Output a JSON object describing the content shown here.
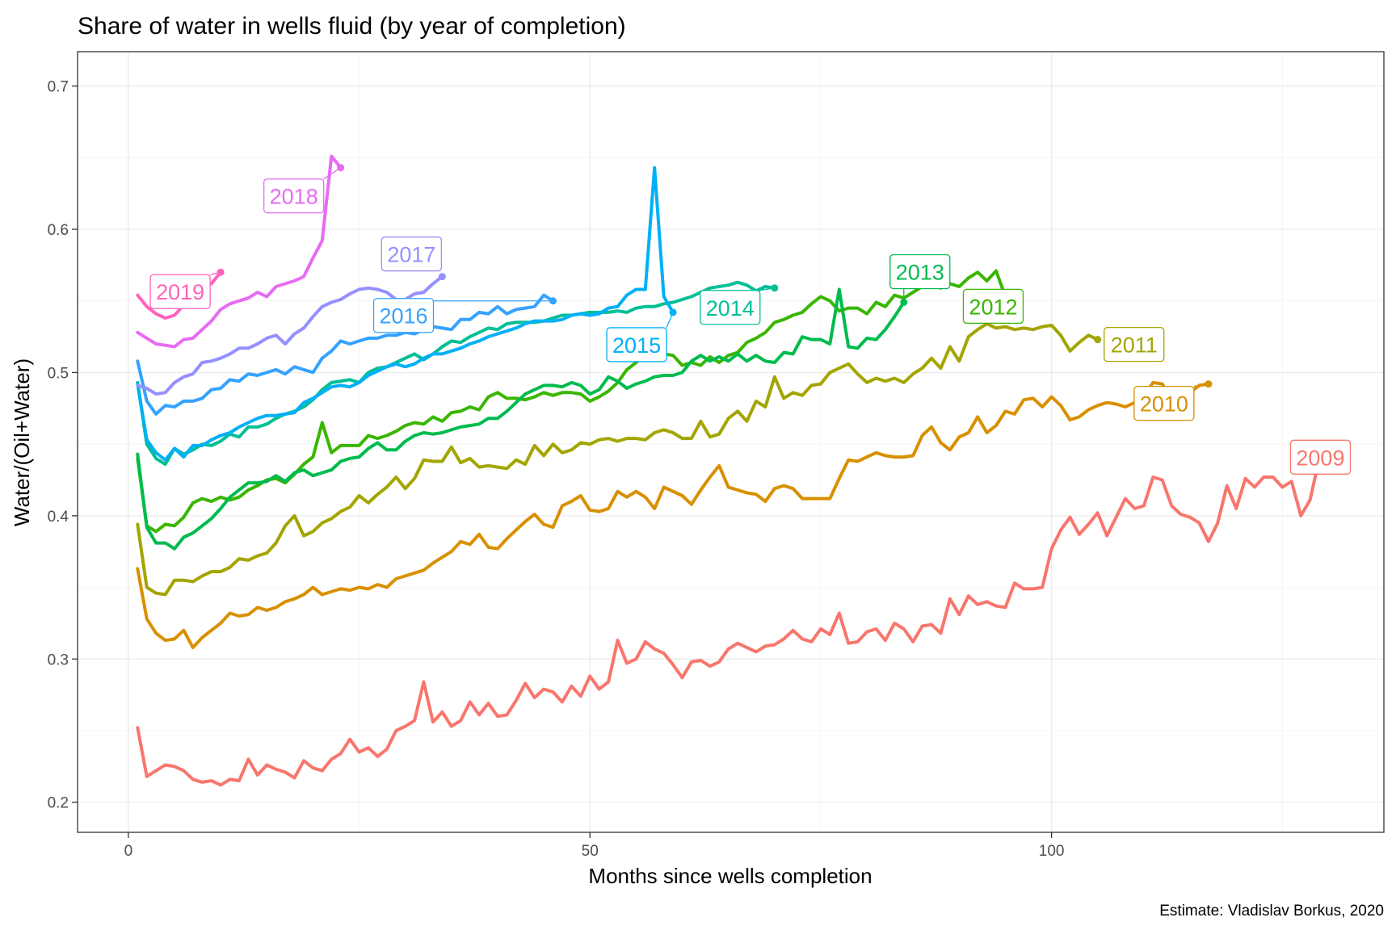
{
  "chart_data": {
    "type": "line",
    "title": "Share of water in wells fluid (by year of completion)",
    "xlabel": "Months since wells completion",
    "ylabel": "Water/(Oil+Water)",
    "caption": "Estimate: Vladislav Borkus, 2020",
    "xlim": [
      -5.5,
      136
    ],
    "ylim": [
      0.179,
      0.724
    ],
    "x_ticks": [
      0,
      50,
      100
    ],
    "y_ticks": [
      0.2,
      0.3,
      0.4,
      0.5,
      0.6,
      0.7
    ],
    "grid": true,
    "legend": "none (direct labels at series ends)",
    "series": [
      {
        "name": "2009",
        "color": "#F8766D",
        "x_start": 1,
        "values": [
          0.252,
          0.218,
          0.222,
          0.226,
          0.225,
          0.222,
          0.216,
          0.214,
          0.215,
          0.212,
          0.216,
          0.215,
          0.23,
          0.219,
          0.226,
          0.223,
          0.221,
          0.217,
          0.229,
          0.224,
          0.222,
          0.23,
          0.234,
          0.244,
          0.235,
          0.238,
          0.232,
          0.237,
          0.25,
          0.253,
          0.257,
          0.284,
          0.256,
          0.263,
          0.253,
          0.257,
          0.27,
          0.261,
          0.269,
          0.26,
          0.261,
          0.271,
          0.283,
          0.273,
          0.279,
          0.277,
          0.27,
          0.281,
          0.274,
          0.288,
          0.279,
          0.284,
          0.313,
          0.297,
          0.3,
          0.312,
          0.307,
          0.304,
          0.296,
          0.287,
          0.298,
          0.299,
          0.295,
          0.298,
          0.307,
          0.311,
          0.308,
          0.305,
          0.309,
          0.31,
          0.314,
          0.32,
          0.314,
          0.312,
          0.321,
          0.317,
          0.332,
          0.311,
          0.312,
          0.319,
          0.321,
          0.313,
          0.325,
          0.321,
          0.312,
          0.323,
          0.324,
          0.318,
          0.342,
          0.331,
          0.344,
          0.338,
          0.34,
          0.337,
          0.336,
          0.353,
          0.349,
          0.349,
          0.35,
          0.377,
          0.39,
          0.399,
          0.387,
          0.394,
          0.402,
          0.386,
          0.399,
          0.412,
          0.405,
          0.407,
          0.427,
          0.425,
          0.407,
          0.401,
          0.399,
          0.395,
          0.382,
          0.395,
          0.421,
          0.405,
          0.426,
          0.42,
          0.427,
          0.427,
          0.42,
          0.424,
          0.4,
          0.411,
          0.44,
          0.433
        ]
      },
      {
        "name": "2010",
        "color": "#D89000",
        "x_start": 1,
        "values": [
          0.363,
          0.328,
          0.318,
          0.313,
          0.314,
          0.32,
          0.308,
          0.315,
          0.32,
          0.325,
          0.332,
          0.33,
          0.331,
          0.336,
          0.334,
          0.336,
          0.34,
          0.342,
          0.345,
          0.35,
          0.345,
          0.347,
          0.349,
          0.348,
          0.35,
          0.349,
          0.352,
          0.35,
          0.356,
          0.358,
          0.36,
          0.362,
          0.367,
          0.371,
          0.375,
          0.382,
          0.38,
          0.387,
          0.378,
          0.377,
          0.384,
          0.39,
          0.396,
          0.401,
          0.394,
          0.392,
          0.407,
          0.41,
          0.414,
          0.404,
          0.403,
          0.405,
          0.417,
          0.413,
          0.417,
          0.413,
          0.405,
          0.42,
          0.417,
          0.414,
          0.408,
          0.418,
          0.427,
          0.435,
          0.42,
          0.418,
          0.416,
          0.415,
          0.41,
          0.419,
          0.421,
          0.419,
          0.412,
          0.412,
          0.412,
          0.412,
          0.426,
          0.439,
          0.438,
          0.441,
          0.444,
          0.442,
          0.441,
          0.441,
          0.442,
          0.456,
          0.462,
          0.451,
          0.446,
          0.455,
          0.458,
          0.469,
          0.458,
          0.463,
          0.473,
          0.471,
          0.481,
          0.482,
          0.476,
          0.483,
          0.477,
          0.467,
          0.469,
          0.474,
          0.477,
          0.479,
          0.478,
          0.476,
          0.479,
          0.484,
          0.493,
          0.492,
          0.481,
          0.477,
          0.486,
          0.491,
          0.492
        ]
      },
      {
        "name": "2011",
        "color": "#A3A500",
        "x_start": 1,
        "values": [
          0.394,
          0.35,
          0.346,
          0.345,
          0.355,
          0.355,
          0.354,
          0.358,
          0.361,
          0.361,
          0.364,
          0.37,
          0.369,
          0.372,
          0.374,
          0.381,
          0.393,
          0.4,
          0.386,
          0.389,
          0.395,
          0.398,
          0.403,
          0.406,
          0.414,
          0.409,
          0.415,
          0.42,
          0.427,
          0.419,
          0.426,
          0.439,
          0.438,
          0.438,
          0.448,
          0.437,
          0.44,
          0.434,
          0.435,
          0.434,
          0.433,
          0.439,
          0.436,
          0.449,
          0.442,
          0.45,
          0.444,
          0.446,
          0.451,
          0.45,
          0.453,
          0.454,
          0.452,
          0.454,
          0.454,
          0.453,
          0.458,
          0.46,
          0.458,
          0.454,
          0.454,
          0.466,
          0.455,
          0.457,
          0.468,
          0.473,
          0.466,
          0.48,
          0.476,
          0.497,
          0.482,
          0.486,
          0.484,
          0.491,
          0.492,
          0.5,
          0.503,
          0.506,
          0.499,
          0.493,
          0.496,
          0.494,
          0.496,
          0.493,
          0.499,
          0.503,
          0.51,
          0.503,
          0.518,
          0.508,
          0.525,
          0.53,
          0.534,
          0.531,
          0.532,
          0.53,
          0.531,
          0.53,
          0.532,
          0.533,
          0.526,
          0.515,
          0.521,
          0.526,
          0.523
        ]
      },
      {
        "name": "2012",
        "color": "#39B600",
        "x_start": 1,
        "values": [
          0.44,
          0.393,
          0.389,
          0.394,
          0.393,
          0.399,
          0.409,
          0.412,
          0.41,
          0.413,
          0.411,
          0.413,
          0.418,
          0.421,
          0.425,
          0.426,
          0.423,
          0.429,
          0.436,
          0.441,
          0.465,
          0.444,
          0.449,
          0.449,
          0.449,
          0.456,
          0.454,
          0.456,
          0.459,
          0.463,
          0.465,
          0.464,
          0.469,
          0.466,
          0.472,
          0.473,
          0.476,
          0.474,
          0.483,
          0.486,
          0.482,
          0.482,
          0.481,
          0.483,
          0.486,
          0.484,
          0.486,
          0.486,
          0.485,
          0.48,
          0.483,
          0.487,
          0.493,
          0.502,
          0.507,
          0.513,
          0.514,
          0.513,
          0.512,
          0.505,
          0.507,
          0.505,
          0.511,
          0.507,
          0.512,
          0.514,
          0.521,
          0.524,
          0.528,
          0.535,
          0.537,
          0.54,
          0.542,
          0.548,
          0.553,
          0.55,
          0.543,
          0.545,
          0.545,
          0.541,
          0.549,
          0.546,
          0.554,
          0.552,
          0.556,
          0.56,
          0.562,
          0.559,
          0.562,
          0.56,
          0.566,
          0.57,
          0.564,
          0.571,
          0.553
        ]
      },
      {
        "name": "2013",
        "color": "#00BB4E",
        "x_start": 1,
        "values": [
          0.443,
          0.392,
          0.381,
          0.381,
          0.377,
          0.385,
          0.388,
          0.393,
          0.398,
          0.405,
          0.413,
          0.418,
          0.423,
          0.423,
          0.424,
          0.428,
          0.424,
          0.43,
          0.432,
          0.428,
          0.43,
          0.432,
          0.438,
          0.44,
          0.441,
          0.447,
          0.451,
          0.446,
          0.446,
          0.452,
          0.456,
          0.458,
          0.457,
          0.458,
          0.46,
          0.462,
          0.463,
          0.464,
          0.468,
          0.468,
          0.473,
          0.479,
          0.485,
          0.488,
          0.491,
          0.491,
          0.49,
          0.493,
          0.491,
          0.485,
          0.488,
          0.497,
          0.494,
          0.489,
          0.492,
          0.494,
          0.497,
          0.498,
          0.498,
          0.5,
          0.508,
          0.512,
          0.508,
          0.511,
          0.508,
          0.513,
          0.508,
          0.512,
          0.508,
          0.507,
          0.514,
          0.513,
          0.525,
          0.523,
          0.523,
          0.52,
          0.558,
          0.518,
          0.517,
          0.524,
          0.523,
          0.53,
          0.539,
          0.549
        ]
      },
      {
        "name": "2014",
        "color": "#00BF96",
        "x_start": 1,
        "values": [
          0.493,
          0.45,
          0.44,
          0.436,
          0.447,
          0.443,
          0.446,
          0.45,
          0.449,
          0.452,
          0.457,
          0.455,
          0.462,
          0.462,
          0.464,
          0.468,
          0.471,
          0.473,
          0.476,
          0.481,
          0.488,
          0.493,
          0.494,
          0.495,
          0.493,
          0.5,
          0.503,
          0.504,
          0.507,
          0.51,
          0.513,
          0.509,
          0.513,
          0.518,
          0.522,
          0.521,
          0.525,
          0.528,
          0.531,
          0.53,
          0.534,
          0.535,
          0.535,
          0.535,
          0.536,
          0.538,
          0.54,
          0.54,
          0.541,
          0.542,
          0.542,
          0.542,
          0.543,
          0.542,
          0.545,
          0.546,
          0.546,
          0.548,
          0.549,
          0.551,
          0.553,
          0.556,
          0.559,
          0.56,
          0.561,
          0.563,
          0.561,
          0.557,
          0.56,
          0.559
        ]
      },
      {
        "name": "2015",
        "color": "#00B0F6",
        "x_start": 1,
        "values": [
          0.492,
          0.453,
          0.444,
          0.439,
          0.447,
          0.441,
          0.449,
          0.449,
          0.453,
          0.456,
          0.458,
          0.462,
          0.465,
          0.468,
          0.47,
          0.47,
          0.471,
          0.472,
          0.479,
          0.482,
          0.486,
          0.49,
          0.491,
          0.49,
          0.493,
          0.498,
          0.501,
          0.504,
          0.506,
          0.504,
          0.506,
          0.51,
          0.513,
          0.513,
          0.515,
          0.517,
          0.52,
          0.522,
          0.525,
          0.527,
          0.529,
          0.531,
          0.534,
          0.536,
          0.536,
          0.536,
          0.537,
          0.54,
          0.541,
          0.54,
          0.541,
          0.545,
          0.546,
          0.554,
          0.558,
          0.558,
          0.643,
          0.553,
          0.542
        ]
      },
      {
        "name": "2016",
        "color": "#35A2FF",
        "x_start": 1,
        "values": [
          0.508,
          0.48,
          0.471,
          0.477,
          0.476,
          0.48,
          0.48,
          0.482,
          0.488,
          0.489,
          0.495,
          0.494,
          0.499,
          0.498,
          0.5,
          0.502,
          0.499,
          0.504,
          0.502,
          0.5,
          0.51,
          0.515,
          0.522,
          0.52,
          0.522,
          0.524,
          0.524,
          0.526,
          0.526,
          0.528,
          0.527,
          0.53,
          0.532,
          0.531,
          0.53,
          0.537,
          0.537,
          0.542,
          0.541,
          0.546,
          0.541,
          0.544,
          0.545,
          0.546,
          0.554,
          0.55
        ]
      },
      {
        "name": "2017",
        "color": "#9590FF",
        "x_start": 1,
        "values": [
          0.491,
          0.489,
          0.485,
          0.486,
          0.493,
          0.497,
          0.499,
          0.507,
          0.508,
          0.51,
          0.513,
          0.517,
          0.517,
          0.52,
          0.524,
          0.526,
          0.52,
          0.527,
          0.531,
          0.539,
          0.546,
          0.549,
          0.551,
          0.555,
          0.558,
          0.559,
          0.558,
          0.556,
          0.551,
          0.551,
          0.555,
          0.556,
          0.562,
          0.567
        ]
      },
      {
        "name": "2018",
        "color": "#E76BF3",
        "x_start": 1,
        "values": [
          0.528,
          0.524,
          0.52,
          0.519,
          0.518,
          0.523,
          0.524,
          0.53,
          0.536,
          0.544,
          0.548,
          0.55,
          0.552,
          0.556,
          0.553,
          0.56,
          0.562,
          0.564,
          0.567,
          0.58,
          0.592,
          0.651,
          0.643
        ]
      },
      {
        "name": "2019",
        "color": "#FF62BC",
        "x_start": 1,
        "values": [
          0.554,
          0.546,
          0.541,
          0.538,
          0.54,
          0.547,
          0.553,
          0.56,
          0.562,
          0.57
        ]
      }
    ]
  }
}
